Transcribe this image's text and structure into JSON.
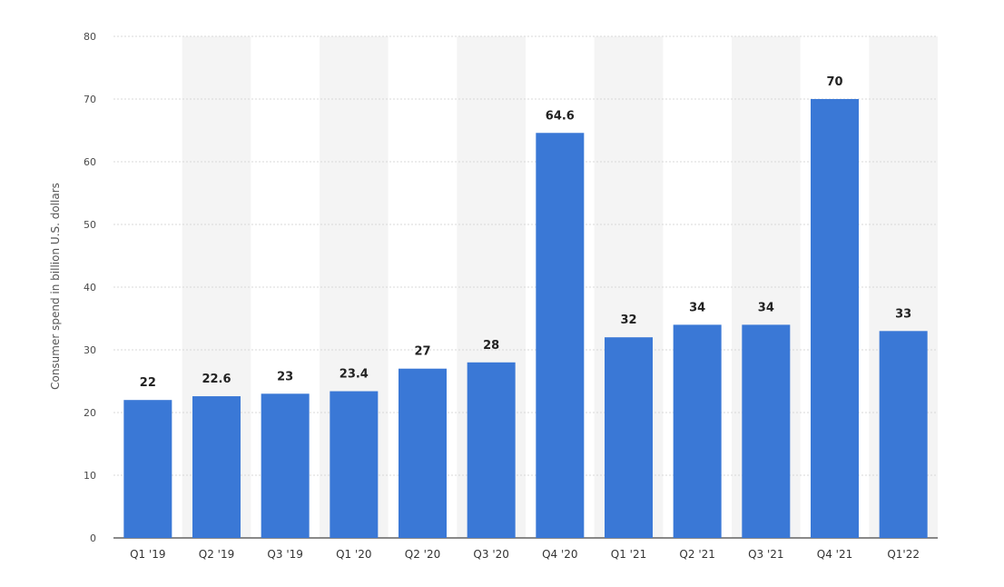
{
  "chart_data": {
    "type": "bar",
    "categories": [
      "Q1 '19",
      "Q2 '19",
      "Q3 '19",
      "Q1 '20",
      "Q2 '20",
      "Q3 '20",
      "Q4 '20",
      "Q1 '21",
      "Q2 '21",
      "Q3 '21",
      "Q4 '21",
      "Q1'22"
    ],
    "values": [
      22,
      22.6,
      23,
      23.4,
      27,
      28,
      64.6,
      32,
      34,
      34,
      70,
      33
    ],
    "value_labels": [
      "22",
      "22.6",
      "23",
      "23.4",
      "27",
      "28",
      "64.6",
      "32",
      "34",
      "34",
      "70",
      "33"
    ],
    "title": "",
    "xlabel": "",
    "ylabel": "Consumer spend in billion U.S. dollars",
    "ylim": [
      0,
      80
    ],
    "yticks": [
      0,
      10,
      20,
      30,
      40,
      50,
      60,
      70,
      80
    ],
    "grid": true,
    "legend": "none",
    "bar_color": "#3a78d6",
    "stripe_color": "#f4f4f4"
  }
}
